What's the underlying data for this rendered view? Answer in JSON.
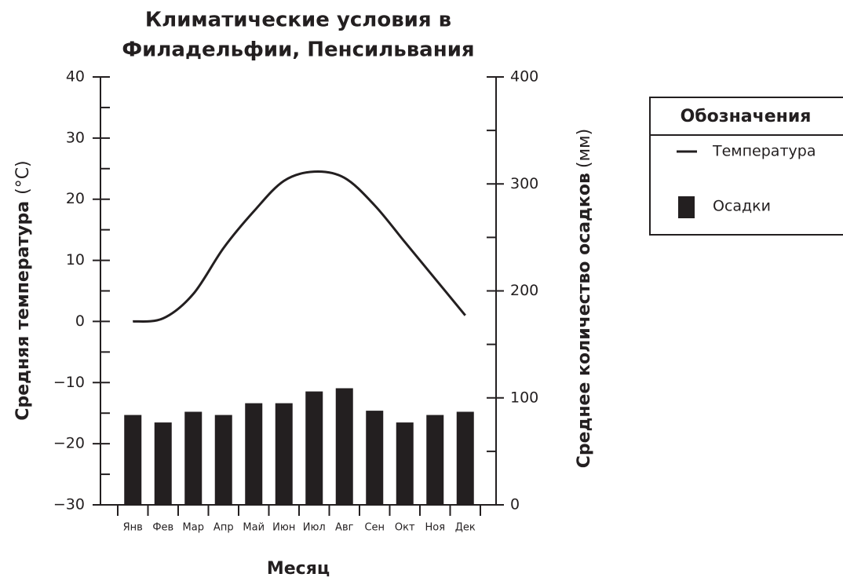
{
  "chart_data": {
    "type": "bar-line",
    "title": [
      "Климатические условия в",
      "Филадельфии, Пенсильвания"
    ],
    "xlabel": "Месяц",
    "ylabel": "Средняя температура",
    "yunit": "(°C)",
    "y2label": "Среднее количество осадков",
    "y2unit": "(мм)",
    "categories": [
      "Янв",
      "Фев",
      "Мар",
      "Апр",
      "Май",
      "Июн",
      "Июл",
      "Авг",
      "Сен",
      "Окт",
      "Ноя",
      "Дек"
    ],
    "series": [
      {
        "name": "Температура",
        "type": "line",
        "color": "#231f20",
        "values": [
          0,
          0.5,
          4.5,
          12,
          18,
          23,
          24.5,
          23.5,
          19,
          13,
          7,
          1
        ]
      },
      {
        "name": "Осадки",
        "type": "bar",
        "axis": "y2",
        "color": "#231f20",
        "values": [
          84,
          77,
          87,
          84,
          95,
          95,
          106,
          109,
          88,
          77,
          84,
          87
        ]
      }
    ],
    "ylim": [
      -30,
      40
    ],
    "yticks": [
      {
        "value": -30,
        "label": "−30"
      },
      {
        "value": -20,
        "label": "−20"
      },
      {
        "value": -10,
        "label": "−10"
      },
      0,
      10,
      20,
      30,
      40
    ],
    "yminorticks": [
      -25,
      -15,
      -5,
      5,
      15,
      25,
      35
    ],
    "y2lim": [
      0,
      400
    ],
    "y2ticks": [
      0,
      100,
      200,
      300,
      400
    ],
    "y2minorticks": [
      50,
      150,
      250,
      350
    ],
    "legend_title": "Обозначения",
    "legend": "right"
  }
}
